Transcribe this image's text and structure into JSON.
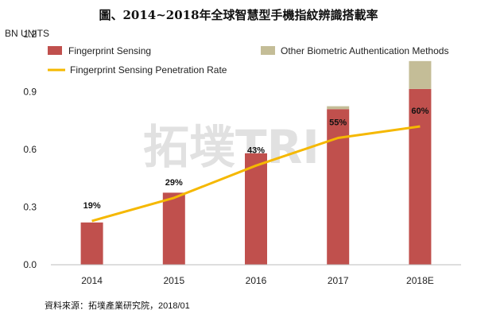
{
  "chart_data": {
    "type": "bar",
    "title": "圖、2014~2018年全球智慧型手機指紋辨識搭載率",
    "ylabel": "BN UNITS",
    "ylim": [
      0,
      1.2
    ],
    "yticks": [
      "0.0",
      "0.3",
      "0.6",
      "0.9",
      "1.2"
    ],
    "categories": [
      "2014",
      "2015",
      "2016",
      "2017",
      "2018E"
    ],
    "stacked": true,
    "series": [
      {
        "name": "Fingerprint Sensing",
        "type": "bar",
        "color": "#c0504d",
        "values": [
          0.22,
          0.375,
          0.58,
          0.81,
          0.915
        ]
      },
      {
        "name": "Other Biometric Authentication Methods",
        "type": "bar",
        "color": "#c4bd97",
        "values": [
          0.0,
          0.0,
          0.0,
          0.015,
          0.145
        ]
      },
      {
        "name": "Fingerprint Sensing Penetration Rate",
        "type": "line",
        "color": "#f5b800",
        "values": [
          0.19,
          0.29,
          0.43,
          0.55,
          0.6
        ],
        "labels": [
          "19%",
          "29%",
          "43%",
          "55%",
          "60%"
        ]
      }
    ],
    "legend": "top",
    "grid": false
  },
  "watermark": "拓墣TRI",
  "source": "資料來源：拓墣產業研究院，2018/01"
}
